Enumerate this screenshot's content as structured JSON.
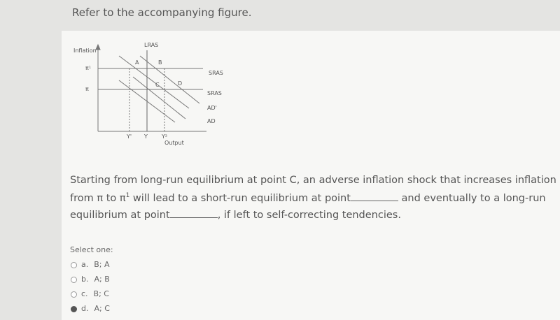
{
  "prompt": "Refer to the accompanying figure.",
  "figure": {
    "y_axis_label": "Inflation",
    "x_axis_label": "Output",
    "lras_label": "LRAS",
    "pi1_label": "π¹",
    "pi_label": "π",
    "points": [
      "A",
      "B",
      "C",
      "D"
    ],
    "curve_labels": [
      "SRAS",
      "SRAS",
      "AD'",
      "AD"
    ],
    "x_labels": [
      "Y'",
      "Y",
      "Y²"
    ]
  },
  "question": {
    "line1": "Starting from long-run equilibrium at point C, an adverse inflation shock that increases inflation",
    "line2_a": "from π to π",
    "line2_sup": "1",
    "line2_b": " will lead to a short-run equilibrium at point",
    "line2_c": " and eventually to a long-run",
    "line3_a": "equilibrium at point",
    "line3_b": ", if left to self-correcting tendencies."
  },
  "select_label": "Select one:",
  "options": [
    {
      "letter": "a.",
      "text": "B; A",
      "selected": false
    },
    {
      "letter": "b.",
      "text": "A; B",
      "selected": false
    },
    {
      "letter": "c.",
      "text": "B; C",
      "selected": false
    },
    {
      "letter": "d.",
      "text": "A; C",
      "selected": true
    }
  ]
}
